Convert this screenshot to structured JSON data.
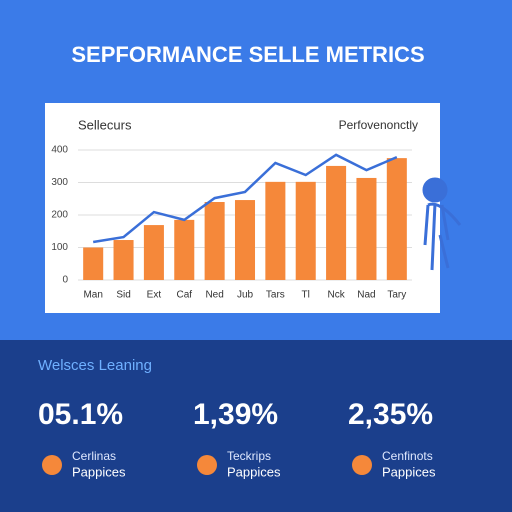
{
  "header": {
    "title": "SEPFORMANCE SELLE METRICS"
  },
  "chart_data": {
    "type": "bar",
    "title": "Sellecurs",
    "subtitle": "Perfovenonctly",
    "categories": [
      "Man",
      "Sid",
      "Ext",
      "Caf",
      "Ned",
      "Jub",
      "Tars",
      "Tl",
      "Nck",
      "Nad",
      "Tary"
    ],
    "series": [
      {
        "name": null,
        "type": "bar",
        "color": "#f5883a",
        "values": [
          100,
          123,
          169,
          185,
          240,
          246,
          302,
          302,
          351,
          314,
          375
        ]
      },
      {
        "name": null,
        "type": "line",
        "color": "#3a6fd8",
        "values": [
          117,
          132,
          209,
          185,
          252,
          271,
          360,
          323,
          385,
          338,
          378
        ]
      }
    ],
    "ylim": [
      0,
      400
    ],
    "yticks": [
      0,
      100,
      200,
      300,
      400
    ],
    "grid": true
  },
  "section": {
    "title": "Welsces Leaning",
    "stats": [
      {
        "value": "05.1%",
        "label1": "Cerlinas",
        "label2": "Pappices"
      },
      {
        "value": "1,39%",
        "label1": "Teckrips",
        "label2": "Pappices"
      },
      {
        "value": "2,35%",
        "label1": "Cenfinots",
        "label2": "Pappices"
      }
    ]
  }
}
